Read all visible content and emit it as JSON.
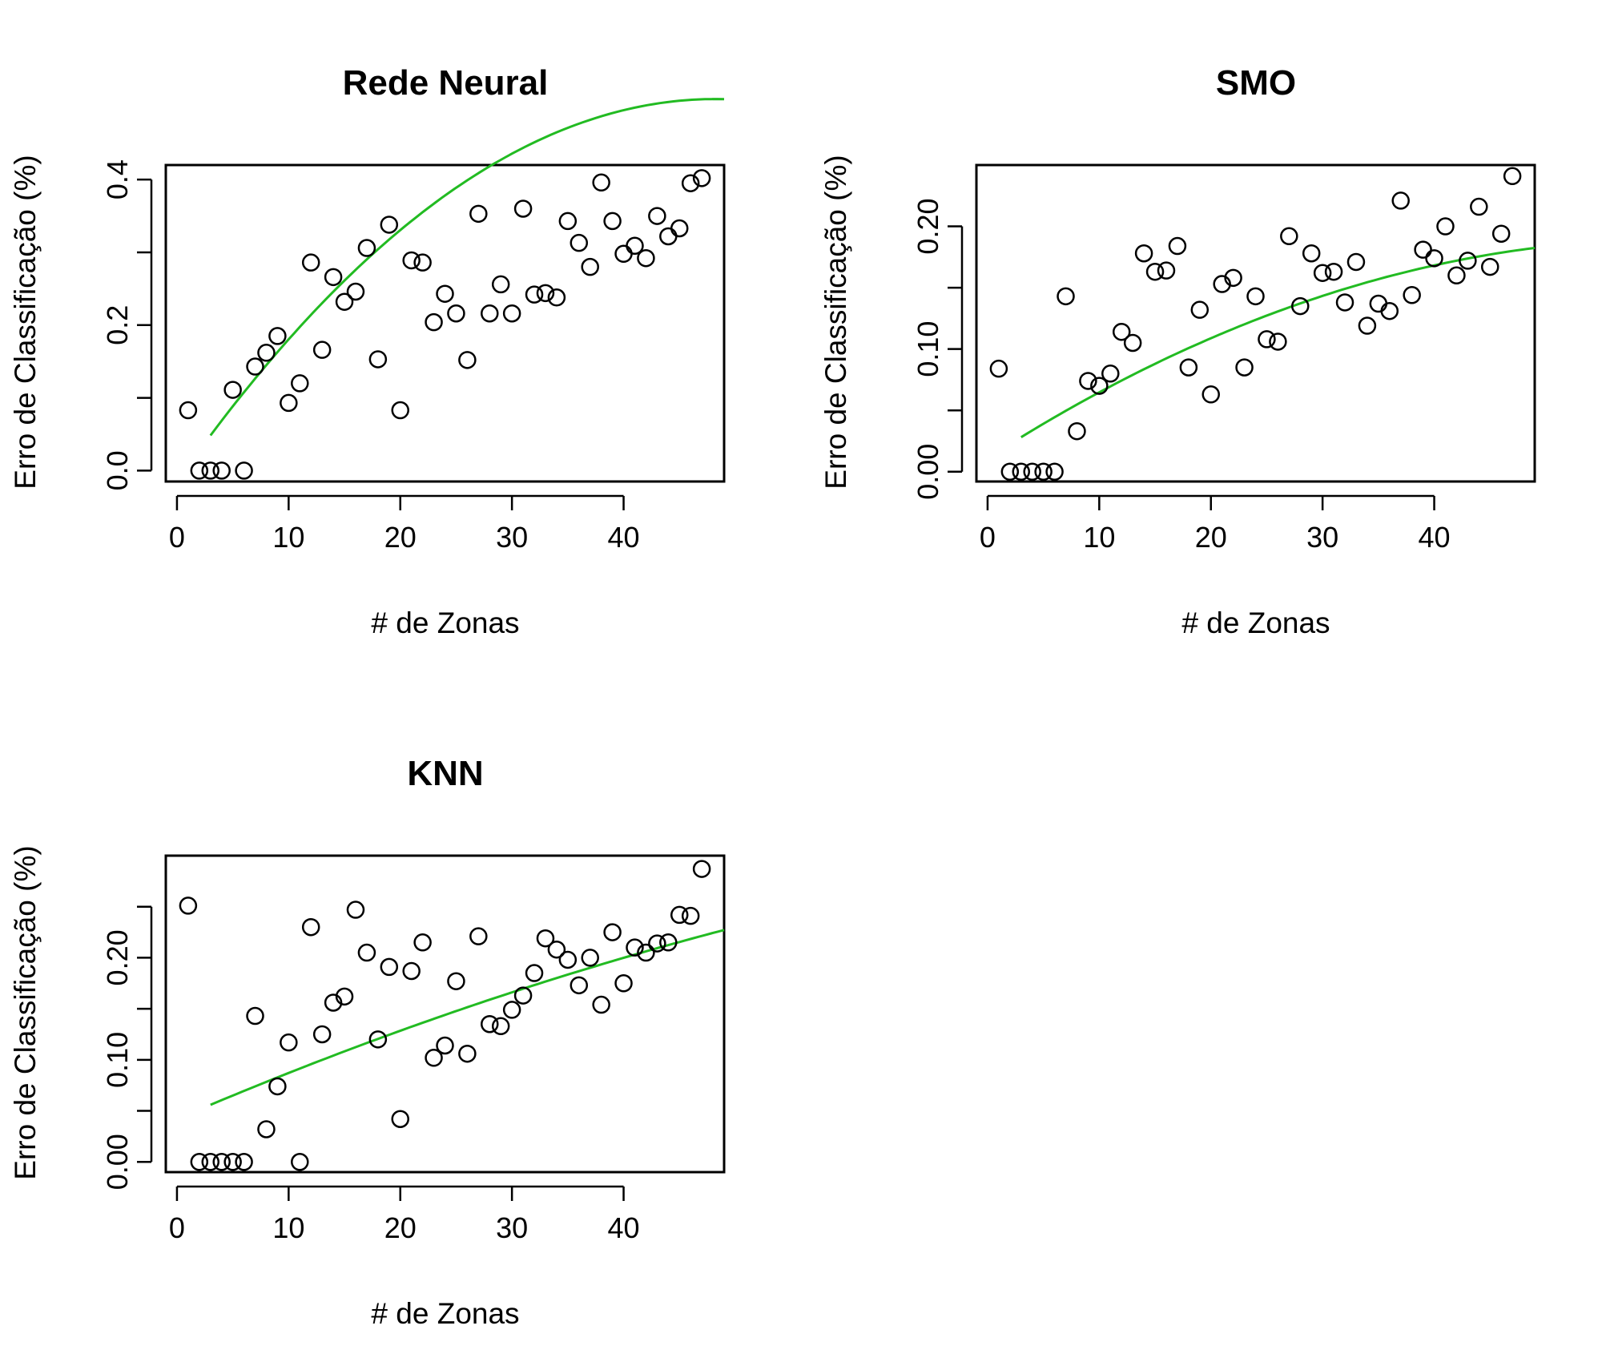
{
  "chart_data": [
    {
      "type": "scatter",
      "title": "Rede Neural",
      "xlabel": "# de Zonas",
      "ylabel": "Erro de Classificação (%)",
      "xlim": [
        -1,
        49
      ],
      "ylim": [
        -0.015,
        0.42
      ],
      "xticks": [
        0,
        10,
        20,
        30,
        40
      ],
      "yticks": [
        0.0,
        0.1,
        0.2,
        0.3,
        0.4
      ],
      "yticklabels": [
        "0.0",
        "",
        "0.2",
        "",
        "0.4"
      ],
      "x": [
        1,
        2,
        3,
        4,
        5,
        6,
        7,
        8,
        9,
        10,
        11,
        12,
        13,
        14,
        15,
        16,
        17,
        18,
        19,
        20,
        21,
        22,
        23,
        24,
        25,
        26,
        27,
        28,
        29,
        30,
        31,
        32,
        33,
        34,
        35,
        36,
        37,
        38,
        39,
        40,
        41,
        42,
        43,
        44,
        45,
        46,
        47
      ],
      "y": [
        0.083,
        0.0,
        0.0,
        0.0,
        0.111,
        0.0,
        0.143,
        0.162,
        0.185,
        0.093,
        0.12,
        0.286,
        0.166,
        0.266,
        0.232,
        0.246,
        0.306,
        0.153,
        0.338,
        0.083,
        0.289,
        0.286,
        0.204,
        0.243,
        0.216,
        0.152,
        0.353,
        0.216,
        0.256,
        0.216,
        0.36,
        0.242,
        0.244,
        0.238,
        0.343,
        0.313,
        0.28,
        0.396,
        0.343,
        0.298,
        0.309,
        0.292,
        0.35,
        0.322,
        0.333,
        0.395,
        0.402
      ],
      "fit": {
        "x_from": 3,
        "x_to": 49,
        "coef": [
          -0.015,
          0.0218,
          -0.000226
        ]
      },
      "fit_color": "#22bb22",
      "grid": false
    },
    {
      "type": "scatter",
      "title": "SMO",
      "xlabel": "# de Zonas",
      "ylabel": "Erro de Classificação (%)",
      "xlim": [
        -1,
        49
      ],
      "ylim": [
        -0.008,
        0.25
      ],
      "xticks": [
        0,
        10,
        20,
        30,
        40
      ],
      "yticks": [
        0.0,
        0.05,
        0.1,
        0.15,
        0.2
      ],
      "yticklabels": [
        "0.00",
        "",
        "0.10",
        "",
        "0.20"
      ],
      "x": [
        1,
        2,
        3,
        4,
        5,
        6,
        7,
        8,
        9,
        10,
        11,
        12,
        13,
        14,
        15,
        16,
        17,
        18,
        19,
        20,
        21,
        22,
        23,
        24,
        25,
        26,
        27,
        28,
        29,
        30,
        31,
        32,
        33,
        34,
        35,
        36,
        37,
        38,
        39,
        40,
        41,
        42,
        43,
        44,
        45,
        46,
        47
      ],
      "y": [
        0.084,
        0.0,
        0.0,
        0.0,
        0.0,
        0.0,
        0.143,
        0.033,
        0.074,
        0.07,
        0.08,
        0.114,
        0.105,
        0.178,
        0.163,
        0.164,
        0.184,
        0.085,
        0.132,
        0.063,
        0.153,
        0.158,
        0.085,
        0.143,
        0.108,
        0.106,
        0.192,
        0.135,
        0.178,
        0.162,
        0.163,
        0.138,
        0.171,
        0.119,
        0.137,
        0.131,
        0.221,
        0.144,
        0.181,
        0.174,
        0.2,
        0.16,
        0.172,
        0.216,
        0.167,
        0.194,
        0.241
      ],
      "fit": {
        "x_from": 3,
        "x_to": 49,
        "coef": [
          0.011,
          0.00585,
          -4.8e-05
        ]
      },
      "fit_color": "#22bb22",
      "grid": false
    },
    {
      "type": "scatter",
      "title": "KNN",
      "xlabel": "# de Zonas",
      "ylabel": "Erro de Classificação (%)",
      "xlim": [
        -1,
        49
      ],
      "ylim": [
        -0.01,
        0.3
      ],
      "xticks": [
        0,
        10,
        20,
        30,
        40
      ],
      "yticks": [
        0.0,
        0.05,
        0.1,
        0.15,
        0.2,
        0.25
      ],
      "yticklabels": [
        "0.00",
        "",
        "0.10",
        "",
        "0.20",
        ""
      ],
      "x": [
        1,
        2,
        3,
        4,
        5,
        6,
        7,
        8,
        9,
        10,
        11,
        12,
        13,
        14,
        15,
        16,
        17,
        18,
        19,
        20,
        21,
        22,
        23,
        24,
        25,
        26,
        27,
        28,
        29,
        30,
        31,
        32,
        33,
        34,
        35,
        36,
        37,
        38,
        39,
        40,
        41,
        42,
        43,
        44,
        45,
        46,
        47
      ],
      "y": [
        0.251,
        0.0,
        0.0,
        0.0,
        0.0,
        0.0,
        0.143,
        0.032,
        0.074,
        0.117,
        0.0,
        0.23,
        0.125,
        0.156,
        0.162,
        0.247,
        0.205,
        0.12,
        0.191,
        0.042,
        0.187,
        0.215,
        0.102,
        0.114,
        0.177,
        0.106,
        0.221,
        0.135,
        0.133,
        0.149,
        0.163,
        0.185,
        0.219,
        0.208,
        0.198,
        0.173,
        0.2,
        0.154,
        0.225,
        0.175,
        0.21,
        0.205,
        0.214,
        0.215,
        0.242,
        0.241,
        0.287
      ],
      "fit": {
        "x_from": 3,
        "x_to": 49,
        "coef": [
          0.042,
          0.0047,
          -1.88e-05
        ]
      },
      "fit_color": "#22bb22",
      "grid": false
    }
  ]
}
